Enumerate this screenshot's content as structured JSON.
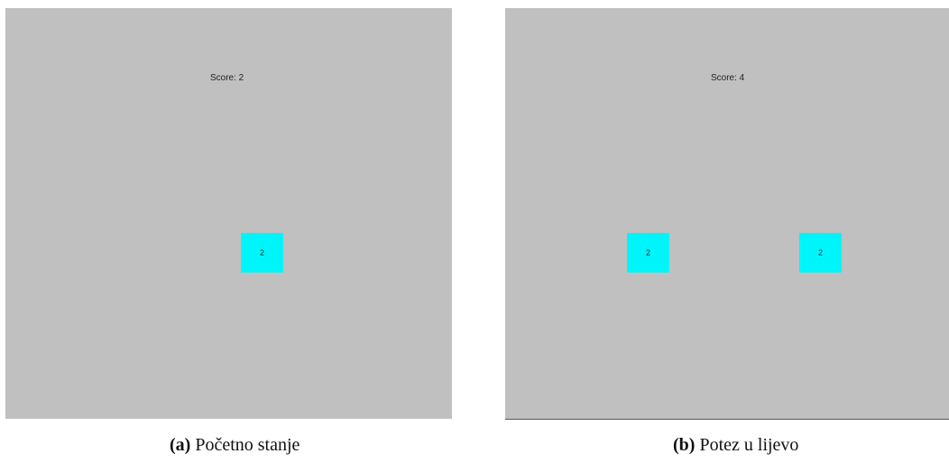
{
  "panels": [
    {
      "score_text": "Score: 2",
      "tiles": [
        "2"
      ],
      "caption_label": "(a)",
      "caption_text": " Početno stanje"
    },
    {
      "score_text": "Score: 4",
      "tiles": [
        "2",
        "2"
      ],
      "caption_label": "(b)",
      "caption_text": " Potez u lijevo"
    }
  ],
  "colors": {
    "board_background": "#c0c0c0",
    "tile_color": "#00f5fa"
  }
}
